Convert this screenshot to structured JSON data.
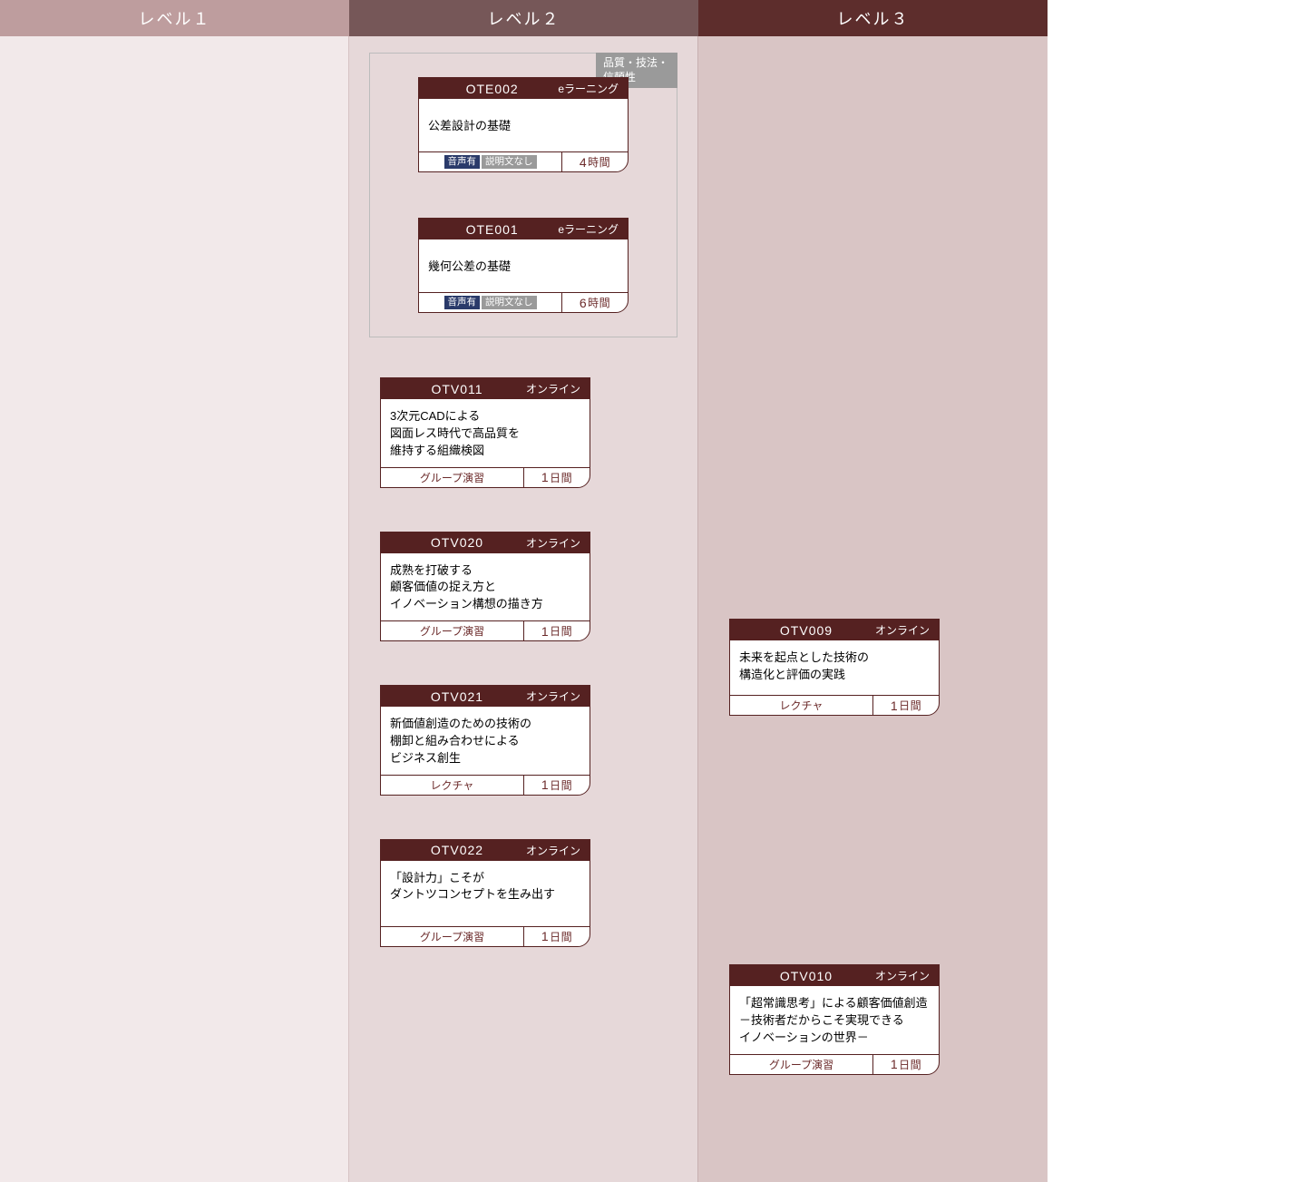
{
  "columns": {
    "level1": {
      "header": "レベル１"
    },
    "level2": {
      "header": "レベル２"
    },
    "level3": {
      "header": "レベル３"
    }
  },
  "category": {
    "label": "品質・技法・信頼性"
  },
  "cards": {
    "ote002": {
      "code": "OTE002",
      "type": "eラーニング",
      "title": "公差設計の基礎",
      "badge_audio": "音声有",
      "badge_desc": "説明文なし",
      "duration_num": "4",
      "duration_unit": "時間"
    },
    "ote001": {
      "code": "OTE001",
      "type": "eラーニング",
      "title": "幾何公差の基礎",
      "badge_audio": "音声有",
      "badge_desc": "説明文なし",
      "duration_num": "6",
      "duration_unit": "時間"
    },
    "otv011": {
      "code": "OTV011",
      "type": "オンライン",
      "title": "3次元CADによる\n図面レス時代で高品質を\n維持する組織検図",
      "style": "グループ演習",
      "duration_num": "1",
      "duration_unit": "日間"
    },
    "otv020": {
      "code": "OTV020",
      "type": "オンライン",
      "title": "成熟を打破する\n顧客価値の捉え方と\nイノベーション構想の描き方",
      "style": "グループ演習",
      "duration_num": "1",
      "duration_unit": "日間"
    },
    "otv021": {
      "code": "OTV021",
      "type": "オンライン",
      "title": "新価値創造のための技術の\n棚卸と組み合わせによる\nビジネス創生",
      "style": "レクチャ",
      "duration_num": "1",
      "duration_unit": "日間"
    },
    "otv022": {
      "code": "OTV022",
      "type": "オンライン",
      "title": "「設計力」こそが\nダントツコンセプトを生み出す",
      "style": "グループ演習",
      "duration_num": "1",
      "duration_unit": "日間"
    },
    "otv009": {
      "code": "OTV009",
      "type": "オンライン",
      "title": "未来を起点とした技術の\n構造化と評価の実践",
      "style": "レクチャ",
      "duration_num": "1",
      "duration_unit": "日間"
    },
    "otv010": {
      "code": "OTV010",
      "type": "オンライン",
      "title": "「超常識思考」による顧客価値創造\n－技術者だからこそ実現できる\nイノベーションの世界－",
      "style": "グループ演習",
      "duration_num": "1",
      "duration_unit": "日間"
    }
  }
}
